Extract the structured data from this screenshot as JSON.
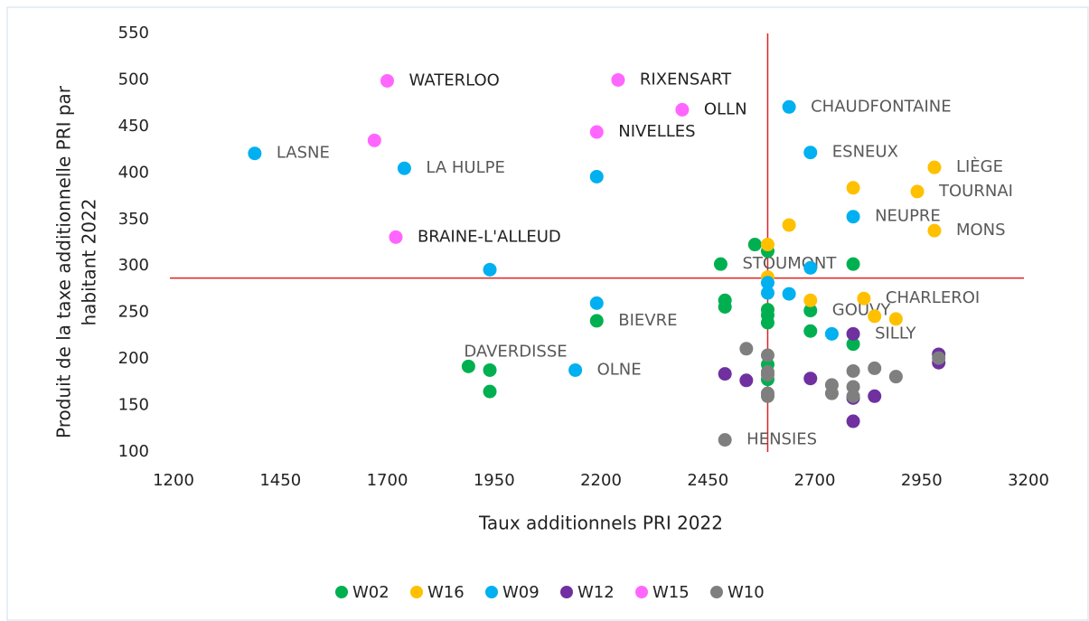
{
  "chart_data": {
    "type": "scatter",
    "x_label": "Taux additionnels PRI 2022",
    "y_label": [
      "Produit de la taxe additionnelle PRI par",
      "habitant 2022"
    ],
    "xlim": [
      1200,
      3200
    ],
    "xticks": [
      1200,
      1450,
      1700,
      1950,
      2200,
      2450,
      2700,
      2950,
      3200
    ],
    "ylim": [
      100,
      550
    ],
    "yticks": [
      100,
      150,
      200,
      250,
      300,
      350,
      400,
      450,
      500,
      550
    ],
    "grid": false,
    "legend": "bottom",
    "reference_lines": {
      "color": "#e02020",
      "x": 2590,
      "y": 287
    },
    "series": [
      {
        "name": "W02",
        "color": "#00b050",
        "x": [
          1890,
          1940,
          1940,
          2190,
          2480,
          2560,
          2590,
          2490,
          2490,
          2590,
          2590,
          2590,
          2590,
          2590,
          2690,
          2690,
          2790,
          2790
        ],
        "values": [
          192,
          188,
          165,
          241,
          302,
          323,
          316,
          263,
          256,
          253,
          247,
          239,
          194,
          178,
          252,
          230,
          302,
          216
        ],
        "labels": [
          "DAVERDISSE",
          null,
          null,
          "BIEVRE",
          "STOUMONT",
          null,
          null,
          null,
          null,
          null,
          null,
          null,
          null,
          null,
          "GOUVY",
          null,
          null,
          null
        ]
      },
      {
        "name": "W16",
        "color": "#ffc000",
        "x": [
          2590,
          2590,
          2640,
          2790,
          2690,
          2815,
          2840,
          2890,
          2980,
          2940,
          2980
        ],
        "values": [
          323,
          288,
          344,
          384,
          263,
          265,
          246,
          243,
          406,
          380,
          338
        ],
        "labels": [
          null,
          null,
          null,
          null,
          null,
          "CHARLEROI",
          null,
          null,
          "LIÈGE",
          "TOURNAI",
          "MONS"
        ]
      },
      {
        "name": "W09",
        "color": "#00b0f0",
        "x": [
          1390,
          1740,
          2190,
          1940,
          2190,
          2140,
          2640,
          2690,
          2790,
          2690,
          2590,
          2590,
          2640,
          2740
        ],
        "values": [
          421,
          405,
          396,
          296,
          260,
          188,
          471,
          422,
          353,
          298,
          282,
          271,
          270,
          227
        ],
        "labels": [
          "LASNE",
          "LA HULPE",
          null,
          null,
          null,
          "OLNE",
          "CHAUDFONTAINE",
          "ESNEUX",
          "NEUPRE",
          null,
          null,
          null,
          null,
          null
        ]
      },
      {
        "name": "W12",
        "color": "#7030a0",
        "x": [
          2490,
          2540,
          2690,
          2790,
          2790,
          2790,
          2840,
          2990,
          2990
        ],
        "values": [
          184,
          177,
          179,
          227,
          158,
          133,
          160,
          205,
          196
        ],
        "labels": [
          null,
          null,
          null,
          "SILLY",
          null,
          null,
          null,
          null,
          null
        ]
      },
      {
        "name": "W15",
        "color": "#ff66ff",
        "x": [
          1700,
          2240,
          2390,
          2190,
          1670,
          1720
        ],
        "values": [
          499,
          500,
          468,
          444,
          435,
          331
        ],
        "labels": [
          "WATERLOO",
          "RIXENSART",
          "OLLN",
          "NIVELLES",
          null,
          "BRAINE-L'ALLEUD"
        ]
      },
      {
        "name": "W10",
        "color": "#7f7f7f",
        "x": [
          2540,
          2590,
          2590,
          2590,
          2590,
          2590,
          2490,
          2740,
          2740,
          2790,
          2790,
          2790,
          2840,
          2890,
          2990
        ],
        "values": [
          211,
          204,
          186,
          183,
          163,
          160,
          113,
          172,
          163,
          187,
          170,
          160,
          190,
          181,
          201
        ],
        "labels": [
          null,
          null,
          null,
          null,
          null,
          null,
          "HENSIES",
          null,
          null,
          null,
          null,
          null,
          null,
          null,
          null
        ]
      }
    ]
  }
}
